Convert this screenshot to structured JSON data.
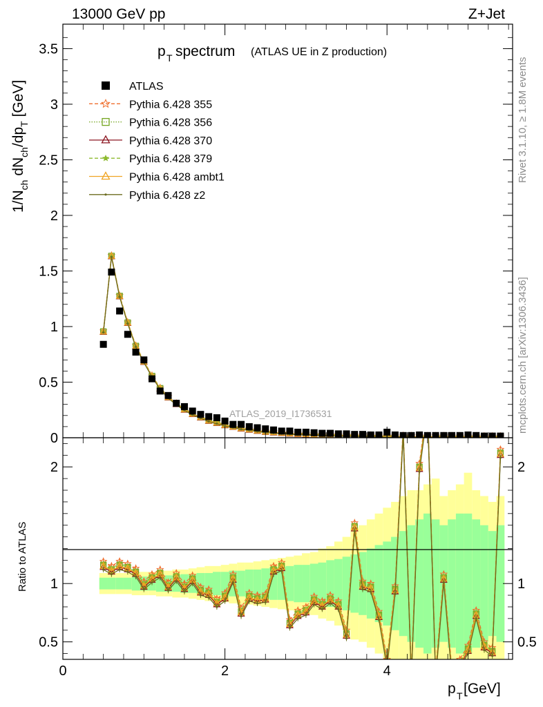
{
  "header": {
    "left": "13000 GeV pp",
    "right": "Z+Jet"
  },
  "side_labels": {
    "rivet": "Rivet 3.1.10, ≥ 1.8M events",
    "mcplots": "mcplots.cern.ch [arXiv:1306.3436]"
  },
  "watermark": "ATLAS_2019_I1736531",
  "chart_data": [
    {
      "type": "scatter",
      "title_main": "p",
      "title_sub": "T",
      "title_rest": " spectrum",
      "title_paren": "(ATLAS UE in Z production)",
      "ylabel": {
        "a": "1/N",
        "b": "ch",
        "c": " dN",
        "d": "ch",
        "e": "/dp",
        "f": "T",
        "g": " [GeV]"
      },
      "ylim": [
        0,
        3.72
      ],
      "yticks": [
        "0",
        "0.5",
        "1",
        "1.5",
        "2",
        "2.5",
        "3",
        "3.5"
      ],
      "legend_position": "top-left",
      "x": [
        0.5,
        0.6,
        0.7,
        0.8,
        0.9,
        1.0,
        1.1,
        1.2,
        1.3,
        1.4,
        1.5,
        1.6,
        1.7,
        1.8,
        1.9,
        2.0,
        2.1,
        2.2,
        2.3,
        2.4,
        2.5,
        2.6,
        2.7,
        2.8,
        2.9,
        3.0,
        3.1,
        3.2,
        3.3,
        3.4,
        3.5,
        3.6,
        3.7,
        3.8,
        3.9,
        4.0,
        4.1,
        4.2,
        4.3,
        4.4,
        4.5,
        4.6,
        4.7,
        4.8,
        4.9,
        5.0,
        5.1,
        5.2,
        5.3,
        5.4
      ],
      "atlas": [
        0.84,
        1.49,
        1.14,
        0.93,
        0.77,
        0.7,
        0.53,
        0.42,
        0.38,
        0.31,
        0.28,
        0.24,
        0.21,
        0.19,
        0.18,
        0.15,
        0.12,
        0.12,
        0.1,
        0.09,
        0.08,
        0.07,
        0.06,
        0.06,
        0.05,
        0.05,
        0.045,
        0.04,
        0.04,
        0.035,
        0.035,
        0.03,
        0.03,
        0.025,
        0.025,
        0.05,
        0.025,
        0.02,
        0.02,
        0.025,
        0.02,
        0.02,
        0.02,
        0.02,
        0.02,
        0.025,
        0.02,
        0.015,
        0.015,
        0.015
      ],
      "mc": [
        0.95,
        1.63,
        1.27,
        1.03,
        0.82,
        0.68,
        0.55,
        0.44,
        0.36,
        0.3,
        0.25,
        0.21,
        0.18,
        0.15,
        0.13,
        0.11,
        0.095,
        0.08,
        0.07,
        0.06,
        0.05,
        0.045,
        0.04,
        0.035,
        0.03,
        0.028,
        0.025,
        0.022,
        0.02,
        0.018,
        0.016,
        0.015,
        0.013,
        0.012,
        0.011,
        0.01,
        0.009,
        0.009,
        0.008,
        0.008,
        0.007,
        0.007,
        0.006,
        0.006,
        0.005,
        0.005,
        0.005,
        0.005,
        0.004,
        0.004
      ],
      "series": [
        {
          "name": "ATLAS",
          "color": "#000000",
          "marker": "square"
        },
        {
          "name": "Pythia 6.428 355",
          "color": "#ef6e2d",
          "marker": "star",
          "dash": "dashed"
        },
        {
          "name": "Pythia 6.428 356",
          "color": "#73a51f",
          "marker": "open-square",
          "dash": "dotted"
        },
        {
          "name": "Pythia 6.428 370",
          "color": "#8b1520",
          "marker": "open-triangle",
          "dash": "solid"
        },
        {
          "name": "Pythia 6.428 379",
          "color": "#8dba2e",
          "marker": "star-small",
          "dash": "dashed"
        },
        {
          "name": "Pythia 6.428 ambt1",
          "color": "#f0a422",
          "marker": "open-triangle",
          "dash": "solid"
        },
        {
          "name": "Pythia 6.428 z2",
          "color": "#6b6b1e",
          "marker": "dot",
          "dash": "solid"
        }
      ]
    },
    {
      "type": "line",
      "ylabel": "Ratio to ATLAS",
      "xlabel_main": "p",
      "xlabel_sub": "T",
      "xlabel_rest": " [GeV]",
      "xlim": [
        0,
        5.55
      ],
      "ylim": [
        0.35,
        2.25
      ],
      "xticks": [
        "0",
        "2",
        "4"
      ],
      "yticks": [
        "0.5",
        "1",
        "2"
      ],
      "x": [
        0.5,
        0.6,
        0.7,
        0.8,
        0.9,
        1.0,
        1.1,
        1.2,
        1.3,
        1.4,
        1.5,
        1.6,
        1.7,
        1.8,
        1.9,
        2.0,
        2.1,
        2.2,
        2.3,
        2.4,
        2.5,
        2.6,
        2.7,
        2.8,
        2.9,
        3.0,
        3.1,
        3.2,
        3.3,
        3.4,
        3.5,
        3.6,
        3.7,
        3.8,
        3.9,
        4.0,
        4.1,
        4.2,
        4.3,
        4.4,
        4.5,
        4.6,
        4.7,
        4.8,
        4.9,
        5.0,
        5.1,
        5.2,
        5.3,
        5.4
      ],
      "ratio": [
        1.14,
        1.1,
        1.14,
        1.12,
        1.08,
        0.97,
        1.03,
        1.07,
        0.96,
        1.04,
        0.95,
        1.02,
        0.92,
        0.9,
        0.82,
        0.87,
        1.03,
        0.74,
        0.87,
        0.85,
        0.86,
        1.1,
        1.13,
        0.64,
        0.72,
        0.75,
        0.84,
        0.8,
        0.85,
        0.8,
        0.55,
        1.47,
        0.97,
        0.95,
        0.71,
        0.3,
        0.93,
        2.3,
        0.2,
        1.98,
        2.5,
        0.2,
        1.03,
        0.22,
        0.3,
        0.42,
        0.72,
        0.45,
        0.4,
        2.1
      ],
      "band_yellow_half": [
        0.09,
        0.09,
        0.09,
        0.09,
        0.1,
        0.1,
        0.1,
        0.11,
        0.11,
        0.12,
        0.12,
        0.13,
        0.14,
        0.15,
        0.15,
        0.16,
        0.17,
        0.18,
        0.18,
        0.19,
        0.2,
        0.21,
        0.22,
        0.23,
        0.24,
        0.26,
        0.27,
        0.3,
        0.32,
        0.36,
        0.4,
        0.48,
        0.5,
        0.55,
        0.6,
        0.65,
        0.7,
        0.75,
        0.8,
        0.8,
        0.85,
        0.9,
        0.75,
        0.8,
        0.85,
        0.95,
        0.8,
        0.75,
        0.7,
        0.75
      ],
      "band_green_half": [
        0.05,
        0.05,
        0.05,
        0.05,
        0.06,
        0.06,
        0.06,
        0.07,
        0.07,
        0.07,
        0.08,
        0.08,
        0.09,
        0.09,
        0.1,
        0.1,
        0.11,
        0.11,
        0.12,
        0.12,
        0.13,
        0.14,
        0.14,
        0.15,
        0.16,
        0.16,
        0.17,
        0.18,
        0.2,
        0.21,
        0.23,
        0.25,
        0.27,
        0.3,
        0.33,
        0.36,
        0.4,
        0.45,
        0.5,
        0.55,
        0.6,
        0.55,
        0.5,
        0.55,
        0.6,
        0.6,
        0.55,
        0.5,
        0.45,
        0.5
      ]
    }
  ]
}
